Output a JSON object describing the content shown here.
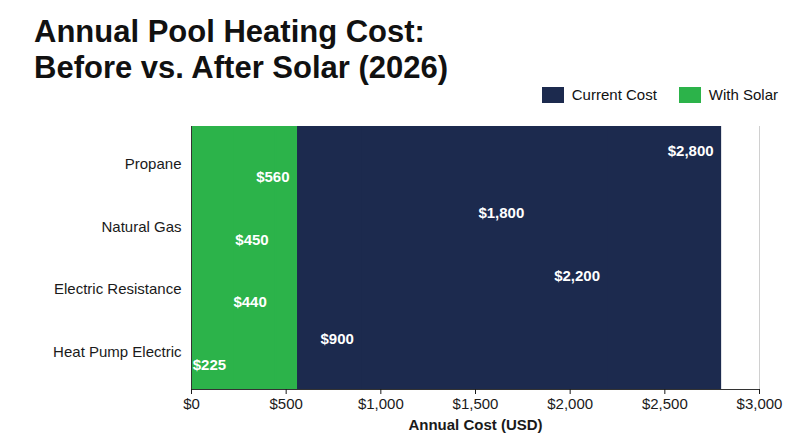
{
  "chart_data": {
    "type": "bar",
    "orientation": "horizontal",
    "title": "Annual Pool Heating Cost: Before vs. After Solar (2026)",
    "categories": [
      "Propane",
      "Natural Gas",
      "Electric Resistance",
      "Heat Pump Electric"
    ],
    "series": [
      {
        "name": "Current Cost",
        "color": "#1c2a4e",
        "values": [
          2800,
          1800,
          2200,
          900
        ],
        "value_labels": [
          "$2,800",
          "$1,800",
          "$2,200",
          "$900"
        ]
      },
      {
        "name": "With Solar",
        "color": "#2cb34a",
        "values": [
          560,
          450,
          440,
          225
        ],
        "value_labels": [
          "$560",
          "$450",
          "$440",
          "$225"
        ]
      }
    ],
    "xlabel": "Annual Cost (USD)",
    "xlim": [
      0,
      3000
    ],
    "xticks": [
      {
        "value": 0,
        "label": "$0"
      },
      {
        "value": 500,
        "label": "$500"
      },
      {
        "value": 1000,
        "label": "$1,000"
      },
      {
        "value": 1500,
        "label": "$1,500"
      },
      {
        "value": 2000,
        "label": "$2,000"
      },
      {
        "value": 2500,
        "label": "$2,500"
      },
      {
        "value": 3000,
        "label": "$3,000"
      }
    ],
    "grid": true,
    "legend": "top-right",
    "data_labels": true
  }
}
